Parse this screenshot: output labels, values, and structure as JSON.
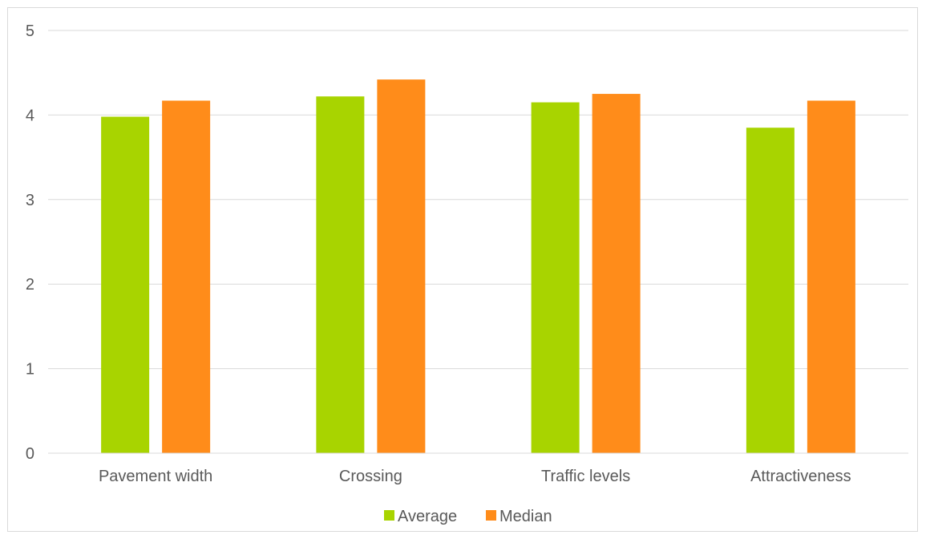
{
  "chart_data": {
    "type": "bar",
    "categories": [
      "Pavement width",
      "Crossing",
      "Traffic levels",
      "Attractiveness"
    ],
    "series": [
      {
        "name": "Average",
        "values": [
          3.98,
          4.22,
          4.15,
          3.85
        ],
        "color": "#a8d400"
      },
      {
        "name": "Median",
        "values": [
          4.17,
          4.42,
          4.25,
          4.17
        ],
        "color": "#ff8c1a"
      }
    ],
    "title": "",
    "xlabel": "",
    "ylabel": "",
    "ylim": [
      0,
      5
    ],
    "yticks": [
      "0",
      "1",
      "2",
      "3",
      "4",
      "5"
    ],
    "grid": true,
    "legend_position": "bottom"
  }
}
